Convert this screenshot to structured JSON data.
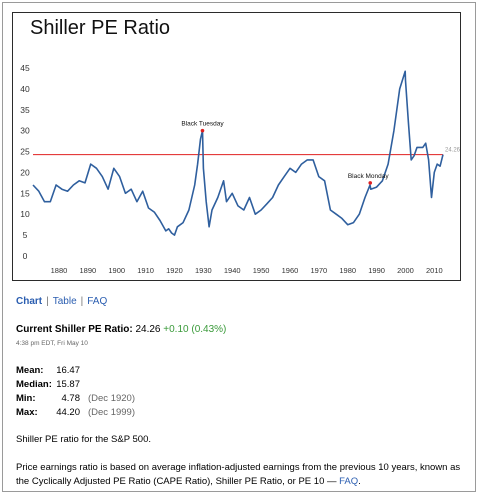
{
  "page": {
    "tabs": [
      {
        "label": "Chart",
        "active": true
      },
      {
        "label": "Table",
        "active": false
      },
      {
        "label": "FAQ",
        "active": false
      }
    ],
    "current": {
      "label": "Current Shiller PE Ratio:",
      "value": "24.26",
      "change": "+0.10 (0.43%)",
      "timestamp": "4:38 pm EDT, Fri May 10"
    },
    "stats": [
      {
        "name": "Mean:",
        "value": "16.47",
        "date": ""
      },
      {
        "name": "Median:",
        "value": "15.87",
        "date": ""
      },
      {
        "name": "Min:",
        "value": "4.78",
        "date": "(Dec 1920)"
      },
      {
        "name": "Max:",
        "value": "44.20",
        "date": "(Dec 1999)"
      }
    ],
    "description_1": "Shiller PE ratio for the S&P 500.",
    "description_2": "Price earnings ratio is based on average inflation-adjusted earnings from the previous 10 years, known as the Cyclically Adjusted PE Ratio (CAPE Ratio), Shiller PE Ratio, or PE 10 —",
    "faq_link": "FAQ",
    "trailing_period": ".",
    "colors": {
      "link": "#2a5db0",
      "series": "#2f5f9e",
      "reference_line": "#e02020",
      "positive_change": "#3a9a3a"
    }
  },
  "chart_data": {
    "type": "line",
    "title": "Shiller PE Ratio",
    "xlabel": "",
    "ylabel": "",
    "xlim": [
      1871,
      2013
    ],
    "ylim": [
      0,
      45
    ],
    "x_ticks": [
      1880,
      1890,
      1900,
      1910,
      1920,
      1930,
      1940,
      1950,
      1960,
      1970,
      1980,
      1990,
      2000,
      2010
    ],
    "y_ticks": [
      0,
      5,
      10,
      15,
      20,
      25,
      30,
      35,
      40,
      45
    ],
    "grid": false,
    "reference_line": {
      "value": 24.26,
      "label": "24.26"
    },
    "annotations": [
      {
        "text": "Black Tuesday",
        "x": 1929.7,
        "y": 30
      },
      {
        "text": "Black Monday",
        "x": 1987.8,
        "y": 17.5
      }
    ],
    "series": [
      {
        "name": "",
        "x": [
          1871,
          1873,
          1875,
          1877,
          1879,
          1881,
          1883,
          1885,
          1887,
          1889,
          1891,
          1893,
          1895,
          1897,
          1899,
          1901,
          1903,
          1905,
          1907,
          1909,
          1911,
          1913,
          1915,
          1917,
          1918,
          1919,
          1920,
          1921,
          1923,
          1925,
          1927,
          1928,
          1929,
          1929.7,
          1930,
          1931,
          1932,
          1933,
          1935,
          1937,
          1938,
          1940,
          1942,
          1944,
          1946,
          1948,
          1950,
          1952,
          1954,
          1956,
          1958,
          1960,
          1962,
          1964,
          1966,
          1968,
          1970,
          1972,
          1974,
          1976,
          1978,
          1980,
          1982,
          1984,
          1986,
          1987.7,
          1988,
          1990,
          1992,
          1994,
          1996,
          1997,
          1998,
          1999.9,
          2000,
          2001,
          2002,
          2003,
          2004,
          2005,
          2006,
          2007,
          2008,
          2009,
          2010,
          2011,
          2012,
          2013
        ],
        "y": [
          17,
          15.5,
          13,
          13,
          17,
          16,
          15.5,
          17,
          18,
          17.5,
          22,
          21,
          19,
          16,
          21,
          19,
          15,
          16,
          13,
          15.5,
          11.5,
          10.5,
          8.5,
          6,
          6.5,
          5.5,
          5,
          7,
          8,
          11,
          17,
          22,
          28,
          30,
          21,
          13,
          7,
          11,
          14,
          18,
          13,
          15,
          12,
          11,
          14,
          10,
          11,
          12.5,
          14,
          17,
          19,
          21,
          20,
          22,
          23,
          23,
          19,
          18,
          11,
          10,
          9,
          7.5,
          8,
          10,
          14,
          17,
          16,
          16.5,
          18,
          22,
          30,
          35,
          40,
          44.2,
          42,
          32,
          23,
          24,
          26,
          26,
          26,
          27,
          23,
          14,
          20,
          22,
          21.5,
          24.26
        ]
      }
    ]
  }
}
